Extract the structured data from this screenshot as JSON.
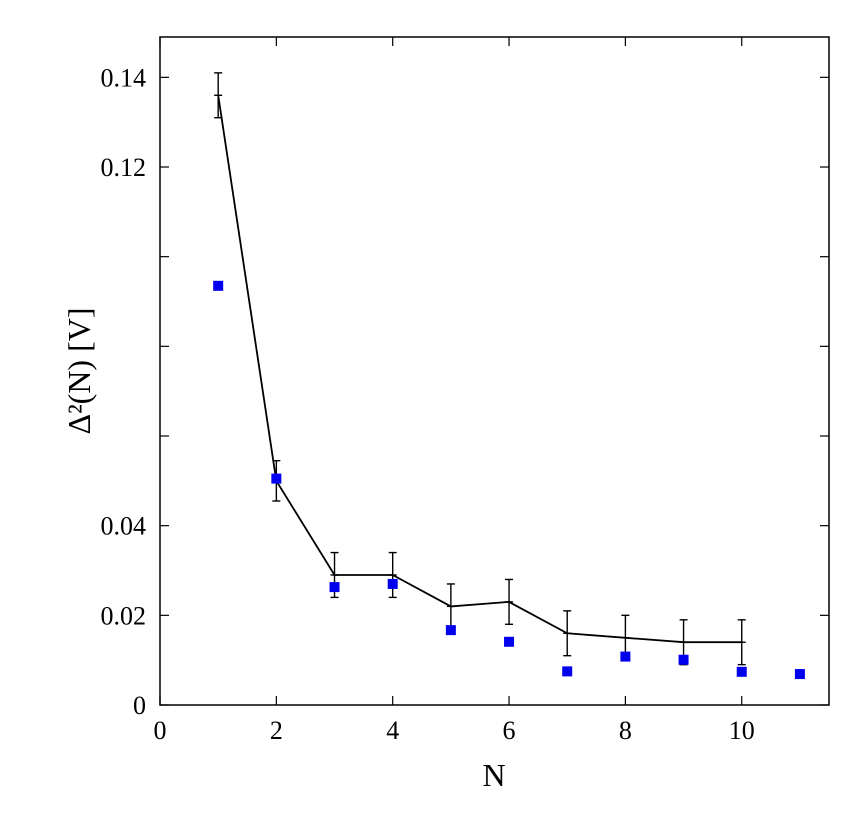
{
  "chart_data": {
    "type": "scatter",
    "xlabel": "N",
    "ylabel": "Δ²(N)    [V]",
    "xlim": [
      0,
      11.5
    ],
    "ylim": [
      0,
      0.149
    ],
    "x_ticks": [
      0,
      2,
      4,
      6,
      8,
      10
    ],
    "x_tick_labels": [
      "0",
      "2",
      "4",
      "6",
      "8",
      "10"
    ],
    "y_ticks": [
      0,
      0.02,
      0.04,
      0.06,
      0.08,
      0.1,
      0.12,
      0.14
    ],
    "y_tick_labels": [
      "0",
      "0.02",
      "0.04",
      "",
      "",
      "",
      "0.12",
      "0.14"
    ],
    "grid": false,
    "series": [
      {
        "kind": "line-errorbars",
        "color": "#000000",
        "x": [
          1,
          2,
          3,
          4,
          5,
          6,
          7,
          8,
          9,
          10
        ],
        "y": [
          0.136,
          0.05,
          0.029,
          0.029,
          0.022,
          0.023,
          0.016,
          0.015,
          0.014,
          0.014
        ],
        "err": [
          0.005,
          0.0045,
          0.005,
          0.005,
          0.005,
          0.005,
          0.005,
          0.005,
          0.005,
          0.005
        ]
      },
      {
        "kind": "markers",
        "color": "#0000ee",
        "x": [
          1,
          2,
          3,
          4,
          5,
          6,
          7,
          8,
          9,
          10,
          11
        ],
        "y": [
          0.0935,
          0.0505,
          0.0263,
          0.027,
          0.0167,
          0.0141,
          0.0075,
          0.0108,
          0.0101,
          0.0074,
          0.0069
        ]
      }
    ]
  }
}
